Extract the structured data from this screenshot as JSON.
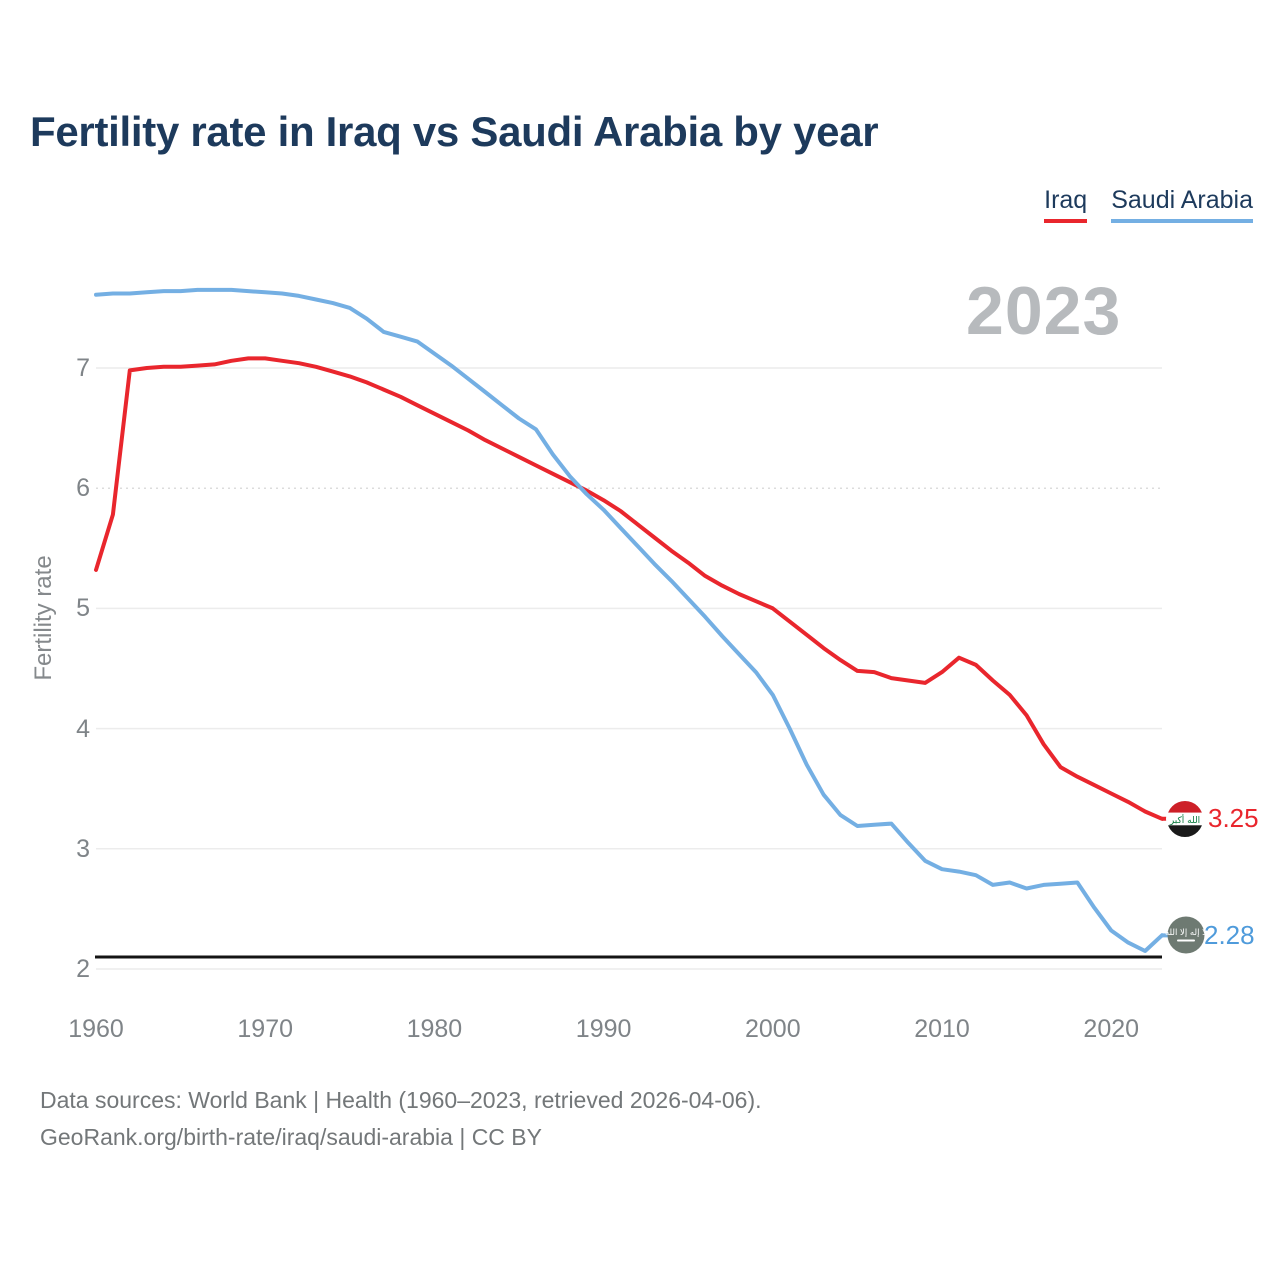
{
  "title": "Fertility rate in Iraq vs Saudi Arabia by year",
  "watermark": "2023",
  "legend": {
    "items": [
      {
        "label": "Iraq",
        "color": "#e9262d"
      },
      {
        "label": "Saudi Arabia",
        "color": "#74afe3"
      }
    ]
  },
  "end_labels": {
    "iraq_value": "3.25",
    "saudi_value": "2.28"
  },
  "icons": {
    "iraq_flag": "iraq-flag-icon",
    "iraq_flag_script": "الله أكبر",
    "saudi_flag": "saudi-flag-icon",
    "saudi_flag_script": "لا إله إلا الله"
  },
  "footer": {
    "line1": "Data sources: World Bank | Health (1960–2023, retrieved 2026-04-06).",
    "line2": "GeoRank.org/birth-rate/iraq/saudi-arabia | CC BY"
  },
  "chart_data": {
    "type": "line",
    "title": "Fertility rate in Iraq vs Saudi Arabia by year",
    "xlabel": "",
    "ylabel": "Fertility rate",
    "x_ticks": [
      1960,
      1970,
      1980,
      1990,
      2000,
      2010,
      2020
    ],
    "y_ticks": [
      2,
      3,
      4,
      5,
      6,
      7
    ],
    "ylim": [
      1.95,
      7.85
    ],
    "grid": true,
    "legend_position": "top-right",
    "reference_line": {
      "value": 2.1,
      "color": "#141414"
    },
    "x": [
      1960,
      1961,
      1962,
      1963,
      1964,
      1965,
      1966,
      1967,
      1968,
      1969,
      1970,
      1971,
      1972,
      1973,
      1974,
      1975,
      1976,
      1977,
      1978,
      1979,
      1980,
      1981,
      1982,
      1983,
      1984,
      1985,
      1986,
      1987,
      1988,
      1989,
      1990,
      1991,
      1992,
      1993,
      1994,
      1995,
      1996,
      1997,
      1998,
      1999,
      2000,
      2001,
      2002,
      2003,
      2004,
      2005,
      2006,
      2007,
      2008,
      2009,
      2010,
      2011,
      2012,
      2013,
      2014,
      2015,
      2016,
      2017,
      2018,
      2019,
      2020,
      2021,
      2022,
      2023
    ],
    "series": [
      {
        "name": "Iraq",
        "color": "#e9262d",
        "final_value": 3.25,
        "values": [
          5.32,
          5.78,
          6.98,
          7.0,
          7.01,
          7.01,
          7.02,
          7.03,
          7.06,
          7.08,
          7.08,
          7.06,
          7.04,
          7.01,
          6.97,
          6.93,
          6.88,
          6.82,
          6.76,
          6.69,
          6.62,
          6.55,
          6.48,
          6.4,
          6.33,
          6.26,
          6.19,
          6.12,
          6.05,
          5.98,
          5.9,
          5.81,
          5.7,
          5.59,
          5.48,
          5.38,
          5.27,
          5.19,
          5.12,
          5.06,
          5.0,
          4.89,
          4.78,
          4.67,
          4.57,
          4.48,
          4.47,
          4.42,
          4.4,
          4.38,
          4.47,
          4.59,
          4.53,
          4.4,
          4.28,
          4.11,
          3.87,
          3.68,
          3.6,
          3.53,
          3.46,
          3.39,
          3.31,
          3.25
        ]
      },
      {
        "name": "Saudi Arabia",
        "color": "#74afe3",
        "final_value": 2.28,
        "values": [
          7.61,
          7.62,
          7.62,
          7.63,
          7.64,
          7.64,
          7.65,
          7.65,
          7.65,
          7.64,
          7.63,
          7.62,
          7.6,
          7.57,
          7.54,
          7.5,
          7.41,
          7.3,
          7.26,
          7.22,
          7.12,
          7.02,
          6.91,
          6.8,
          6.69,
          6.58,
          6.49,
          6.28,
          6.1,
          5.95,
          5.82,
          5.67,
          5.52,
          5.37,
          5.23,
          5.08,
          4.93,
          4.77,
          4.62,
          4.47,
          4.28,
          4.0,
          3.7,
          3.45,
          3.28,
          3.19,
          3.2,
          3.21,
          3.05,
          2.9,
          2.83,
          2.81,
          2.78,
          2.7,
          2.72,
          2.67,
          2.7,
          2.71,
          2.72,
          2.51,
          2.32,
          2.22,
          2.15,
          2.28
        ]
      }
    ]
  }
}
